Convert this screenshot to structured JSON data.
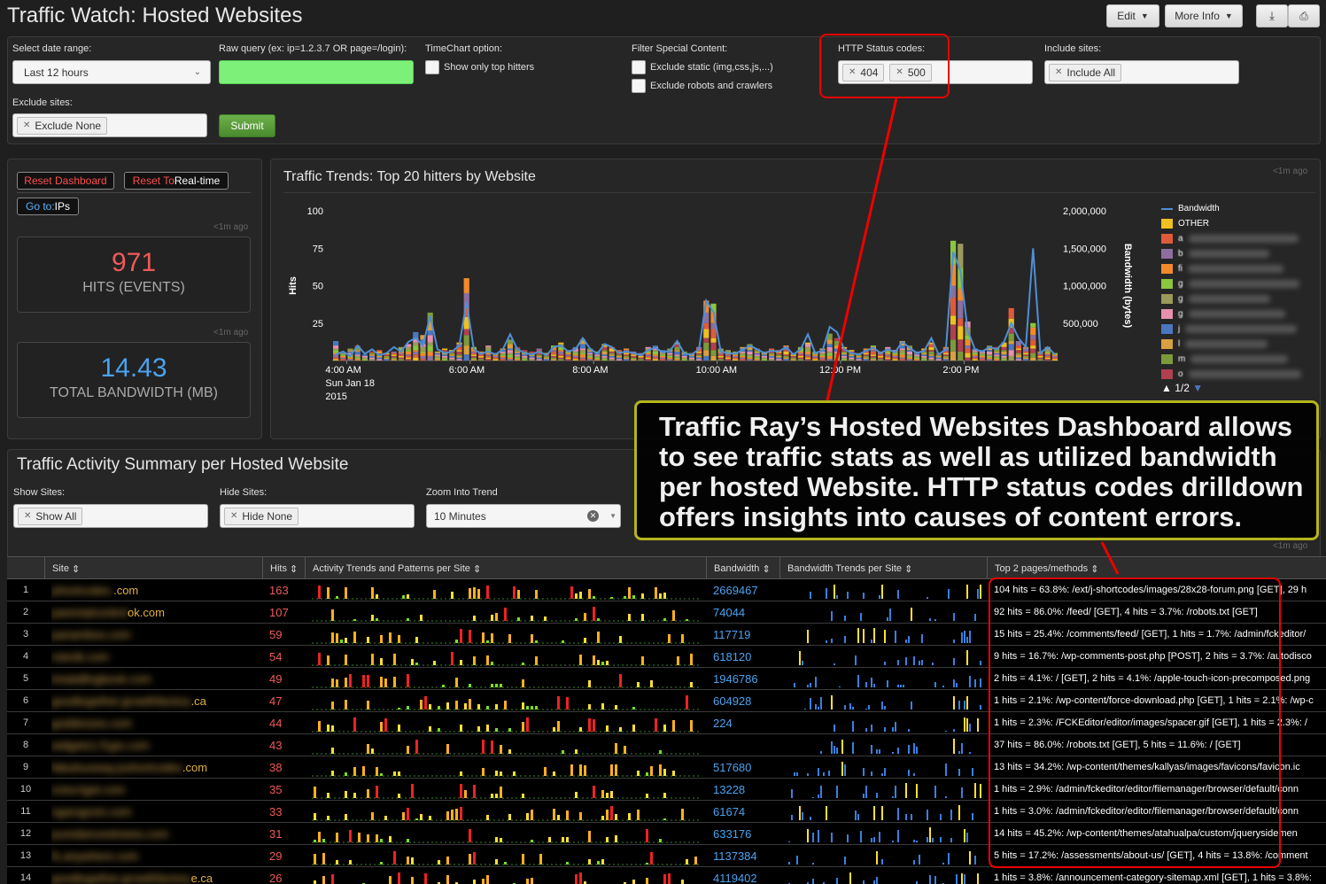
{
  "page_title": "Traffic Watch: Hosted Websites",
  "toolbar": {
    "edit": "Edit",
    "more_info": "More Info"
  },
  "filters": {
    "date_range_label": "Select date range:",
    "date_range_value": "Last 12 hours",
    "raw_query_label": "Raw query (ex: ip=1.2.3.7 OR page=/login):",
    "raw_query_value": "",
    "timechart_label": "TimeChart option:",
    "top_hitters": "Show only top hitters",
    "special_label": "Filter Special Content:",
    "exclude_static": "Exclude static (img,css,js,...)",
    "exclude_robots": "Exclude robots and crawlers",
    "status_label": "HTTP Status codes:",
    "status_tokens": [
      "404",
      "500"
    ],
    "include_label": "Include sites:",
    "include_token": "Include All",
    "exclude_label": "Exclude sites:",
    "exclude_token": "Exclude None",
    "submit": "Submit"
  },
  "side": {
    "reset_dashboard": "Reset Dashboard",
    "reset_realtime_a": "Reset To ",
    "reset_realtime_b": "Real-time",
    "goto_a": "Go to: ",
    "goto_b": "IPs",
    "ago": "<1m ago",
    "hits_value": "971",
    "hits_label": "HITS (EVENTS)",
    "bw_value": "14.43",
    "bw_label": "TOTAL BANDWIDTH (MB)"
  },
  "trend": {
    "title": "Traffic Trends: Top 20 hitters by Website",
    "ago": "<1m ago",
    "pager": "1/2"
  },
  "chart_data": {
    "type": "bar",
    "title": "Traffic Trends: Top 20 hitters by Website",
    "ylabel": "Hits",
    "y2label": "Bandwidth (bytes)",
    "ylim": [
      0,
      100
    ],
    "y2lim": [
      0,
      2000000
    ],
    "yticks": [
      "100",
      "75",
      "50",
      "25"
    ],
    "y2ticks": [
      "2,000,000",
      "1,500,000",
      "1,000,000",
      "500,000"
    ],
    "xticks": [
      "4:00 AM",
      "6:00 AM",
      "8:00 AM",
      "10:00 AM",
      "12:00 PM",
      "2:00 PM"
    ],
    "xdate": [
      "Sun Jan 18",
      "2015"
    ],
    "legend": [
      "Bandwidth",
      "OTHER",
      "a",
      "b",
      "fi",
      "g",
      "g",
      "g",
      "j",
      "l",
      "m",
      "o"
    ],
    "legend_colors": [
      "#4f8fd6",
      "#f0c020",
      "#e05a3a",
      "#8c6fa0",
      "#f28a2c",
      "#8cc63f",
      "#9a9a5a",
      "#e890b0",
      "#4a77c0",
      "#d8a040",
      "#7d9a3a",
      "#b04050"
    ],
    "hits_total": [
      13,
      5,
      8,
      10,
      4,
      6,
      7,
      5,
      6,
      9,
      11,
      19,
      17,
      32,
      6,
      8,
      7,
      12,
      55,
      9,
      6,
      10,
      5,
      8,
      14,
      9,
      7,
      6,
      8,
      5,
      10,
      12,
      7,
      9,
      14,
      8,
      6,
      11,
      9,
      7,
      8,
      6,
      5,
      9,
      10,
      7,
      8,
      12,
      6,
      5,
      9,
      40,
      38,
      8,
      7,
      6,
      9,
      11,
      8,
      6,
      8,
      7,
      10,
      5,
      9,
      12,
      6,
      8,
      18,
      15,
      9,
      7,
      5,
      8,
      10,
      6,
      9,
      7,
      13,
      10,
      6,
      8,
      12,
      5,
      9,
      80,
      78,
      26,
      8,
      7,
      10,
      9,
      12,
      35,
      13,
      9,
      25,
      6,
      9,
      5
    ],
    "bandwidth": [
      80000,
      120000,
      60000,
      200000,
      90000,
      150000,
      70000,
      100000,
      180000,
      120000,
      250000,
      300000,
      200000,
      600000,
      150000,
      100000,
      120000,
      200000,
      780000,
      150000,
      90000,
      120000,
      80000,
      150000,
      350000,
      150000,
      100000,
      80000,
      120000,
      70000,
      180000,
      200000,
      120000,
      150000,
      300000,
      160000,
      90000,
      220000,
      180000,
      100000,
      120000,
      100000,
      70000,
      140000,
      170000,
      110000,
      130000,
      260000,
      90000,
      80000,
      150000,
      800000,
      650000,
      120000,
      100000,
      90000,
      140000,
      200000,
      150000,
      100000,
      130000,
      120000,
      180000,
      80000,
      150000,
      350000,
      100000,
      130000,
      450000,
      380000,
      150000,
      100000,
      80000,
      130000,
      170000,
      100000,
      150000,
      110000,
      250000,
      170000,
      100000,
      130000,
      300000,
      80000,
      150000,
      1450000,
      1200000,
      400000,
      150000,
      120000,
      180000,
      150000,
      250000,
      500000,
      300000,
      180000,
      1500000,
      100000,
      180000,
      80000
    ]
  },
  "summary": {
    "title": "Traffic Activity Summary per Hosted Website",
    "ago": "<1m ago",
    "show_label": "Show Sites:",
    "show_token": "Show All",
    "hide_label": "Hide Sites:",
    "hide_token": "Hide None",
    "zoom_label": "Zoom Into Trend",
    "zoom_value": "10 Minutes",
    "columns": [
      "Site",
      "Hits",
      "Activity Trends and Patterns per Site",
      "Bandwidth",
      "Bandwidth Trends per Site",
      "Top 2 pages/methods"
    ],
    "rows": [
      {
        "n": "1",
        "site_a": "jshortcodes.",
        "site_b": ".com",
        "hits": "163",
        "bw": "2669467",
        "top": "104 hits = 63.8%: /ext/j-shortcodes/images/28x28-forum.png [GET], 29 h"
      },
      {
        "n": "2",
        "site_a": "parentalcontrol",
        "site_b": "ok.com",
        "hits": "107",
        "bw": "74044",
        "top": "92 hits = 86.0%: /feed/ [GET], 4 hits = 3.7%: /robots.txt [GET]"
      },
      {
        "n": "3",
        "site_a": "panamboo.com",
        "site_b": "",
        "hits": "59",
        "bw": "117719",
        "top": "15 hits = 25.4%: /comments/feed/ [GET], 1 hits = 1.7%: /admin/fckeditor/"
      },
      {
        "n": "4",
        "site_a": "rsiesik.com",
        "site_b": "",
        "hits": "54",
        "bw": "618120",
        "top": "9 hits = 16.7%: /wp-comments-post.php [POST], 2 hits = 3.7%: /autodisco"
      },
      {
        "n": "5",
        "site_a": "treatallingbook.com",
        "site_b": "",
        "hits": "49",
        "bw": "1946786",
        "top": "2 hits = 4.1%: / [GET], 2 hits = 4.1%: /apple-touch-icon-precomposed.png"
      },
      {
        "n": "6",
        "site_a": "goodtogether.growthfactory",
        "site_b": ".ca",
        "hits": "47",
        "bw": "604928",
        "top": "1 hits = 2.1%: /wp-content/force-download.php [GET], 1 hits = 2.1%: /wp-c"
      },
      {
        "n": "7",
        "site_a": "goddesses.com",
        "site_b": "",
        "hits": "44",
        "bw": "224",
        "top": "1 hits = 2.3%: /FCKEditor/editor/images/spacer.gif [GET], 1 hits = 2.3%: /"
      },
      {
        "n": "8",
        "site_a": "widgets1.f1gix.com",
        "site_b": "",
        "hits": "43",
        "bw": "",
        "top": "37 hits = 86.0%: /robots.txt [GET], 5 hits = 11.6%: / [GET]"
      },
      {
        "n": "9",
        "site_a": "fabulousway.jsshortcodes",
        "site_b": ".com",
        "hits": "38",
        "bw": "517680",
        "top": "13 hits = 34.2%: /wp-content/themes/kallyas/images/favicons/favicon.ic"
      },
      {
        "n": "10",
        "site_a": "zoiscriget.com",
        "site_b": "",
        "hits": "35",
        "bw": "13228",
        "top": "1 hits = 2.9%: /admin/fckeditor/editor/filemanager/browser/default/conn"
      },
      {
        "n": "11",
        "site_a": "vgarogrom.com",
        "site_b": "",
        "hits": "33",
        "bw": "61674",
        "top": "1 hits = 3.0%: /admin/fckeditor/editor/filemanager/browser/default/conn"
      },
      {
        "n": "12",
        "site_a": "puredancestreees.com",
        "site_b": "",
        "hits": "31",
        "bw": "633176",
        "top": "14 hits = 45.2%: /wp-content/themes/atahualpa/custom/jquerysidemen"
      },
      {
        "n": "13",
        "site_a": "fs.anywhere.com",
        "site_b": "",
        "hits": "29",
        "bw": "1137384",
        "top": "5 hits = 17.2%: /assessments/about-us/ [GET], 4 hits = 13.8%: /comment"
      },
      {
        "n": "14",
        "site_a": "goodtogether.growthfactory",
        "site_b": "e.ca",
        "hits": "26",
        "bw": "4119402",
        "top": "1 hits = 3.8%: /announcement-category-sitemap.xml [GET], 1 hits = 3.8%:"
      }
    ]
  },
  "callout": {
    "lines": [
      "Traffic Ray’s Hosted Websites Dashboard allows",
      "to see traffic stats as well as utilized bandwidth",
      "per hosted Website. HTTP status codes drilldown",
      "offers insights into causes of content errors."
    ]
  }
}
